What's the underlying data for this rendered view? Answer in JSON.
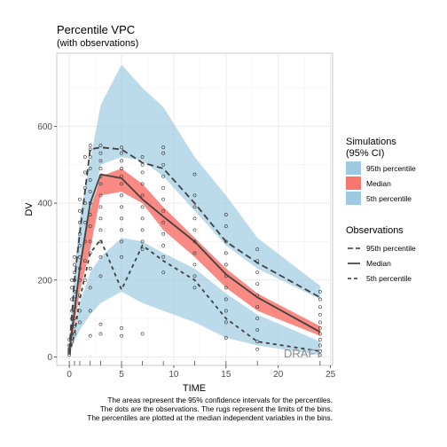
{
  "chart_data": {
    "type": "line",
    "title": "Percentile VPC",
    "subtitle": "(with observations)",
    "xlabel": "TIME",
    "ylabel": "DV",
    "xlim": [
      -1.2,
      25.2
    ],
    "ylim": [
      -22,
      790
    ],
    "x_ticks": [
      0,
      5,
      10,
      15,
      20,
      25
    ],
    "y_ticks": [
      0,
      200,
      400,
      600
    ],
    "grid": true,
    "bins_x": [
      0,
      0.5,
      1,
      2,
      3,
      5,
      7,
      9,
      12,
      15,
      18,
      24
    ],
    "ci_bands": [
      {
        "name": "95th percentile",
        "color": "#9ecae1",
        "lower": [
          12,
          120,
          230,
          360,
          500,
          520,
          510,
          470,
          380,
          290,
          230,
          150
        ],
        "upper": [
          20,
          220,
          360,
          510,
          655,
          760,
          700,
          650,
          520,
          420,
          310,
          185
        ]
      },
      {
        "name": "Median",
        "color": "#f8766d",
        "lower": [
          8,
          80,
          170,
          280,
          420,
          430,
          400,
          330,
          260,
          180,
          120,
          55
        ],
        "upper": [
          12,
          120,
          240,
          380,
          470,
          490,
          450,
          390,
          310,
          230,
          165,
          80
        ]
      },
      {
        "name": "5th percentile",
        "color": "#9ecae1",
        "lower": [
          5,
          40,
          70,
          110,
          140,
          170,
          140,
          120,
          90,
          50,
          30,
          5
        ],
        "upper": [
          8,
          80,
          140,
          220,
          260,
          310,
          300,
          270,
          230,
          165,
          110,
          40
        ]
      }
    ],
    "observed": [
      {
        "name": "95th percentile",
        "dash": "long",
        "x": [
          0,
          0.5,
          1,
          2,
          3,
          5,
          7,
          9,
          12,
          15,
          18,
          24
        ],
        "y": [
          18,
          200,
          320,
          540,
          545,
          540,
          505,
          490,
          400,
          300,
          245,
          155
        ]
      },
      {
        "name": "Median",
        "dash": "solid",
        "x": [
          0,
          0.5,
          1,
          2,
          3,
          5,
          7,
          9,
          12,
          15,
          18,
          24
        ],
        "y": [
          12,
          120,
          230,
          400,
          475,
          465,
          410,
          365,
          300,
          215,
          155,
          65
        ]
      },
      {
        "name": "5th percentile",
        "dash": "short",
        "x": [
          0,
          0.5,
          1,
          2,
          3,
          5,
          7,
          9,
          12,
          15,
          18,
          24
        ],
        "y": [
          8,
          60,
          150,
          270,
          305,
          175,
          290,
          250,
          200,
          100,
          40,
          15
        ]
      }
    ],
    "observations": [
      [
        0,
        5
      ],
      [
        0,
        10
      ],
      [
        0,
        15
      ],
      [
        0,
        20
      ],
      [
        0,
        30
      ],
      [
        0,
        45
      ],
      [
        0.25,
        40
      ],
      [
        0.25,
        60
      ],
      [
        0.25,
        80
      ],
      [
        0.25,
        100
      ],
      [
        0.25,
        120
      ],
      [
        0.25,
        150
      ],
      [
        0.25,
        180
      ],
      [
        0.25,
        200
      ],
      [
        0.5,
        60
      ],
      [
        0.5,
        80
      ],
      [
        0.5,
        100
      ],
      [
        0.5,
        130
      ],
      [
        0.5,
        150
      ],
      [
        0.5,
        170
      ],
      [
        0.5,
        200
      ],
      [
        0.5,
        220
      ],
      [
        0.5,
        240
      ],
      [
        0.5,
        260
      ],
      [
        1,
        90
      ],
      [
        1,
        120
      ],
      [
        1,
        160
      ],
      [
        1,
        200
      ],
      [
        1,
        230
      ],
      [
        1,
        260
      ],
      [
        1,
        290
      ],
      [
        1,
        320
      ],
      [
        1,
        350
      ],
      [
        1,
        380
      ],
      [
        1,
        410
      ],
      [
        1.5,
        200
      ],
      [
        1.5,
        250
      ],
      [
        1.5,
        300
      ],
      [
        1.5,
        350
      ],
      [
        1.5,
        400
      ],
      [
        1.5,
        440
      ],
      [
        1.5,
        480
      ],
      [
        1.5,
        520
      ],
      [
        2,
        55
      ],
      [
        2,
        120
      ],
      [
        2,
        180
      ],
      [
        2,
        230
      ],
      [
        2,
        270
      ],
      [
        2,
        300
      ],
      [
        2,
        340
      ],
      [
        2,
        370
      ],
      [
        2,
        400
      ],
      [
        2,
        430
      ],
      [
        2,
        460
      ],
      [
        2,
        490
      ],
      [
        2,
        520
      ],
      [
        2,
        540
      ],
      [
        2,
        550
      ],
      [
        3,
        60
      ],
      [
        3,
        85
      ],
      [
        3,
        210
      ],
      [
        3,
        260
      ],
      [
        3,
        300
      ],
      [
        3,
        330
      ],
      [
        3,
        360
      ],
      [
        3,
        390
      ],
      [
        3,
        420
      ],
      [
        3,
        450
      ],
      [
        3,
        470
      ],
      [
        3,
        490
      ],
      [
        3,
        510
      ],
      [
        3,
        530
      ],
      [
        3,
        550
      ],
      [
        5,
        55
      ],
      [
        5,
        75
      ],
      [
        5,
        260
      ],
      [
        5,
        300
      ],
      [
        5,
        330
      ],
      [
        5,
        360
      ],
      [
        5,
        390
      ],
      [
        5,
        420
      ],
      [
        5,
        450
      ],
      [
        5,
        470
      ],
      [
        5,
        490
      ],
      [
        5,
        510
      ],
      [
        5,
        530
      ],
      [
        5,
        545
      ],
      [
        7,
        60
      ],
      [
        7,
        280
      ],
      [
        7,
        300
      ],
      [
        7,
        330
      ],
      [
        7,
        360
      ],
      [
        7,
        390
      ],
      [
        7,
        420
      ],
      [
        7,
        450
      ],
      [
        7,
        480
      ],
      [
        7,
        500
      ],
      [
        7,
        520
      ],
      [
        9,
        220
      ],
      [
        9,
        260
      ],
      [
        9,
        290
      ],
      [
        9,
        320
      ],
      [
        9,
        350
      ],
      [
        9,
        380
      ],
      [
        9,
        410
      ],
      [
        9,
        440
      ],
      [
        9,
        470
      ],
      [
        9,
        500
      ],
      [
        9,
        530
      ],
      [
        9,
        545
      ],
      [
        12,
        180
      ],
      [
        12,
        210
      ],
      [
        12,
        240
      ],
      [
        12,
        270
      ],
      [
        12,
        300
      ],
      [
        12,
        330
      ],
      [
        12,
        360
      ],
      [
        12,
        390
      ],
      [
        12,
        420
      ],
      [
        12,
        475
      ],
      [
        15,
        50
      ],
      [
        15,
        90
      ],
      [
        15,
        120
      ],
      [
        15,
        150
      ],
      [
        15,
        180
      ],
      [
        15,
        210
      ],
      [
        15,
        240
      ],
      [
        15,
        270
      ],
      [
        15,
        300
      ],
      [
        15,
        340
      ],
      [
        15,
        370
      ],
      [
        18,
        20
      ],
      [
        18,
        40
      ],
      [
        18,
        70
      ],
      [
        18,
        100
      ],
      [
        18,
        130
      ],
      [
        18,
        160
      ],
      [
        18,
        190
      ],
      [
        18,
        220
      ],
      [
        18,
        250
      ],
      [
        18,
        280
      ],
      [
        24,
        5
      ],
      [
        24,
        15
      ],
      [
        24,
        30
      ],
      [
        24,
        45
      ],
      [
        24,
        60
      ],
      [
        24,
        75
      ],
      [
        24,
        90
      ],
      [
        24,
        110
      ],
      [
        24,
        130
      ],
      [
        24,
        150
      ],
      [
        24,
        170
      ]
    ]
  },
  "legend": {
    "sim_title_1": "Simulations",
    "sim_title_2": "(95% CI)",
    "sim_items": [
      "95th percentile",
      "Median",
      "5th percentile"
    ],
    "obs_title": "Observations",
    "obs_items": [
      "95th percentile",
      "Median",
      "5th percentile"
    ]
  },
  "caption": [
    "The areas represent the 95% confidence intervals for the percentiles.",
    "The dots are the observations. The rugs represent the limits of the bins.",
    "The percentiles are plotted at the median independent variables in the bins."
  ],
  "watermark": "DRAFT",
  "colors": {
    "ci_blue": "#9ecae1",
    "ci_red": "#f8766d",
    "line": "#404040"
  }
}
